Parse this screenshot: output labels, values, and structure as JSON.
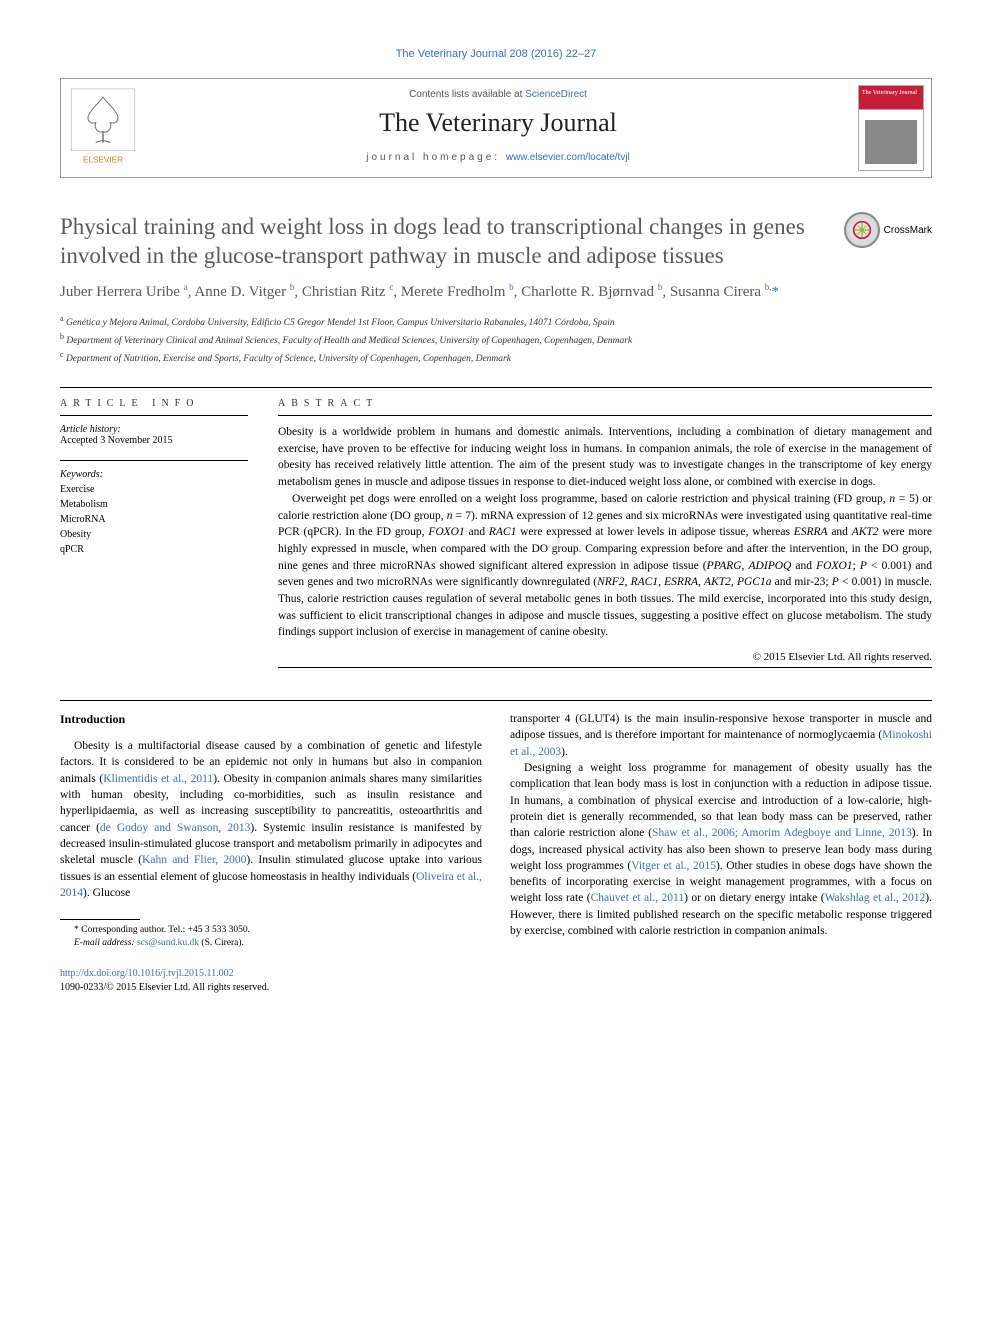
{
  "running_head": "The Veterinary Journal 208 (2016) 22–27",
  "masthead": {
    "contents_prefix": "Contents lists available at ",
    "contents_link": "ScienceDirect",
    "journal_name": "The Veterinary Journal",
    "homepage_prefix": "journal homepage: ",
    "homepage_url": "www.elsevier.com/locate/tvjl",
    "publisher": "ELSEVIER",
    "cover_text": "The Veterinary Journal"
  },
  "crossmark_label": "CrossMark",
  "title": "Physical training and weight loss in dogs lead to transcriptional changes in genes involved in the glucose-transport pathway in muscle and adipose tissues",
  "authors_html": "Juber Herrera Uribe <sup>a</sup>, Anne D. Vitger <sup>b</sup>, Christian Ritz <sup>c</sup>, Merete Fredholm <sup>b</sup>, Charlotte R. Bjørnvad <sup>b</sup>, Susanna Cirera <sup>b,</sup><span class=\"corr\">*</span>",
  "affiliations": [
    {
      "sup": "a",
      "text": "Genética y Mejora Animal, Cordoba University, Edificio C5 Gregor Mendel 1st Floor, Campus Universitario Rabanales, 14071 Córdoba, Spain"
    },
    {
      "sup": "b",
      "text": "Department of Veterinary Clinical and Animal Sciences, Faculty of Health and Medical Sciences, University of Copenhagen, Copenhagen, Denmark"
    },
    {
      "sup": "c",
      "text": "Department of Nutrition, Exercise and Sports, Faculty of Science, University of Copenhagen, Copenhagen, Denmark"
    }
  ],
  "info": {
    "head": "ARTICLE INFO",
    "history_label": "Article history:",
    "history_value": "Accepted 3 November 2015",
    "keywords_label": "Keywords:",
    "keywords": [
      "Exercise",
      "Metabolism",
      "MicroRNA",
      "Obesity",
      "qPCR"
    ]
  },
  "abstract": {
    "head": "ABSTRACT",
    "p1": "Obesity is a worldwide problem in humans and domestic animals. Interventions, including a combination of dietary management and exercise, have proven to be effective for inducing weight loss in humans. In companion animals, the role of exercise in the management of obesity has received relatively little attention. The aim of the present study was to investigate changes in the transcriptome of key energy metabolism genes in muscle and adipose tissues in response to diet-induced weight loss alone, or combined with exercise in dogs.",
    "p2_html": "Overweight pet dogs were enrolled on a weight loss programme, based on calorie restriction and physical training (FD group, <em>n</em> = 5) or calorie restriction alone (DO group, <em>n</em> = 7). mRNA expression of 12 genes and six microRNAs were investigated using quantitative real-time PCR (qPCR). In the FD group, <em>FOXO1</em> and <em>RAC1</em> were expressed at lower levels in adipose tissue, whereas <em>ESRRA</em> and <em>AKT2</em> were more highly expressed in muscle, when compared with the DO group. Comparing expression before and after the intervention, in the DO group, nine genes and three microRNAs showed significant altered expression in adipose tissue (<em>PPARG</em>, <em>ADIPOQ</em> and <em>FOXO1</em>; <em>P</em> < 0.001) and seven genes and two microRNAs were significantly downregulated (<em>NRF2</em>, <em>RAC1</em>, <em>ESRRA</em>, <em>AKT2</em>, <em>PGC1a</em> and mir-23; <em>P</em> < 0.001) in muscle. Thus, calorie restriction causes regulation of several metabolic genes in both tissues. The mild exercise, incorporated into this study design, was sufficient to elicit transcriptional changes in adipose and muscle tissues, suggesting a positive effect on glucose metabolism. The study findings support inclusion of exercise in management of canine obesity.",
    "copyright": "© 2015 Elsevier Ltd. All rights reserved."
  },
  "body": {
    "intro_head": "Introduction",
    "p1_html": "Obesity is a multifactorial disease caused by a combination of genetic and lifestyle factors. It is considered to be an epidemic not only in humans but also in companion animals (<a class=\"ref\" href=\"#\">Klimentidis et al., 2011</a>). Obesity in companion animals shares many similarities with human obesity, including co-morbidities, such as insulin resistance and hyperlipidaemia, as well as increasing susceptibility to pancreatitis, osteoarthritis and cancer (<a class=\"ref\" href=\"#\">de Godoy and Swanson, 2013</a>). Systemic insulin resistance is manifested by decreased insulin-stimulated glucose transport and metabolism primarily in adipocytes and skeletal muscle (<a class=\"ref\" href=\"#\">Kahn and Flier, 2000</a>). Insulin stimulated glucose uptake into various tissues is an essential element of glucose homeostasis in healthy individuals (<a class=\"ref\" href=\"#\">Oliveira et al., 2014</a>). Glucose",
    "p2_html": "transporter 4 (GLUT4) is the main insulin-responsive hexose transporter in muscle and adipose tissues, and is therefore important for maintenance of normoglycaemia (<a class=\"ref\" href=\"#\">Minokoshi et al., 2003</a>).",
    "p3_html": "Designing a weight loss programme for management of obesity usually has the complication that lean body mass is lost in conjunction with a reduction in adipose tissue. In humans, a combination of physical exercise and introduction of a low-calorie, high-protein diet is generally recommended, so that lean body mass can be preserved, rather than calorie restriction alone (<a class=\"ref\" href=\"#\">Shaw et al., 2006; Amorim Adegboye and Linne, 2013</a>). In dogs, increased physical activity has also been shown to preserve lean body mass during weight loss programmes (<a class=\"ref\" href=\"#\">Vitger et al., 2015</a>). Other studies in obese dogs have shown the benefits of incorporating exercise in weight management programmes, with a focus on weight loss rate (<a class=\"ref\" href=\"#\">Chauvet et al., 2011</a>) or on dietary energy intake (<a class=\"ref\" href=\"#\">Wakshlag et al., 2012</a>). However, there is limited published research on the specific metabolic response triggered by exercise, combined with calorie restriction in companion animals."
  },
  "footnote": {
    "corr": "* Corresponding author. Tel.: +45 3 533 3050.",
    "email_label": "E-mail address: ",
    "email": "scs@sund.ku.dk",
    "email_suffix": " (S. Cirera)."
  },
  "footer": {
    "doi": "http://dx.doi.org/10.1016/j.tvjl.2015.11.002",
    "issn_line": "1090-0233/© 2015 Elsevier Ltd. All rights reserved."
  },
  "colors": {
    "link": "#3b6fb6",
    "title_gray": "#5a5a5a",
    "cover_red": "#c41e3a"
  }
}
